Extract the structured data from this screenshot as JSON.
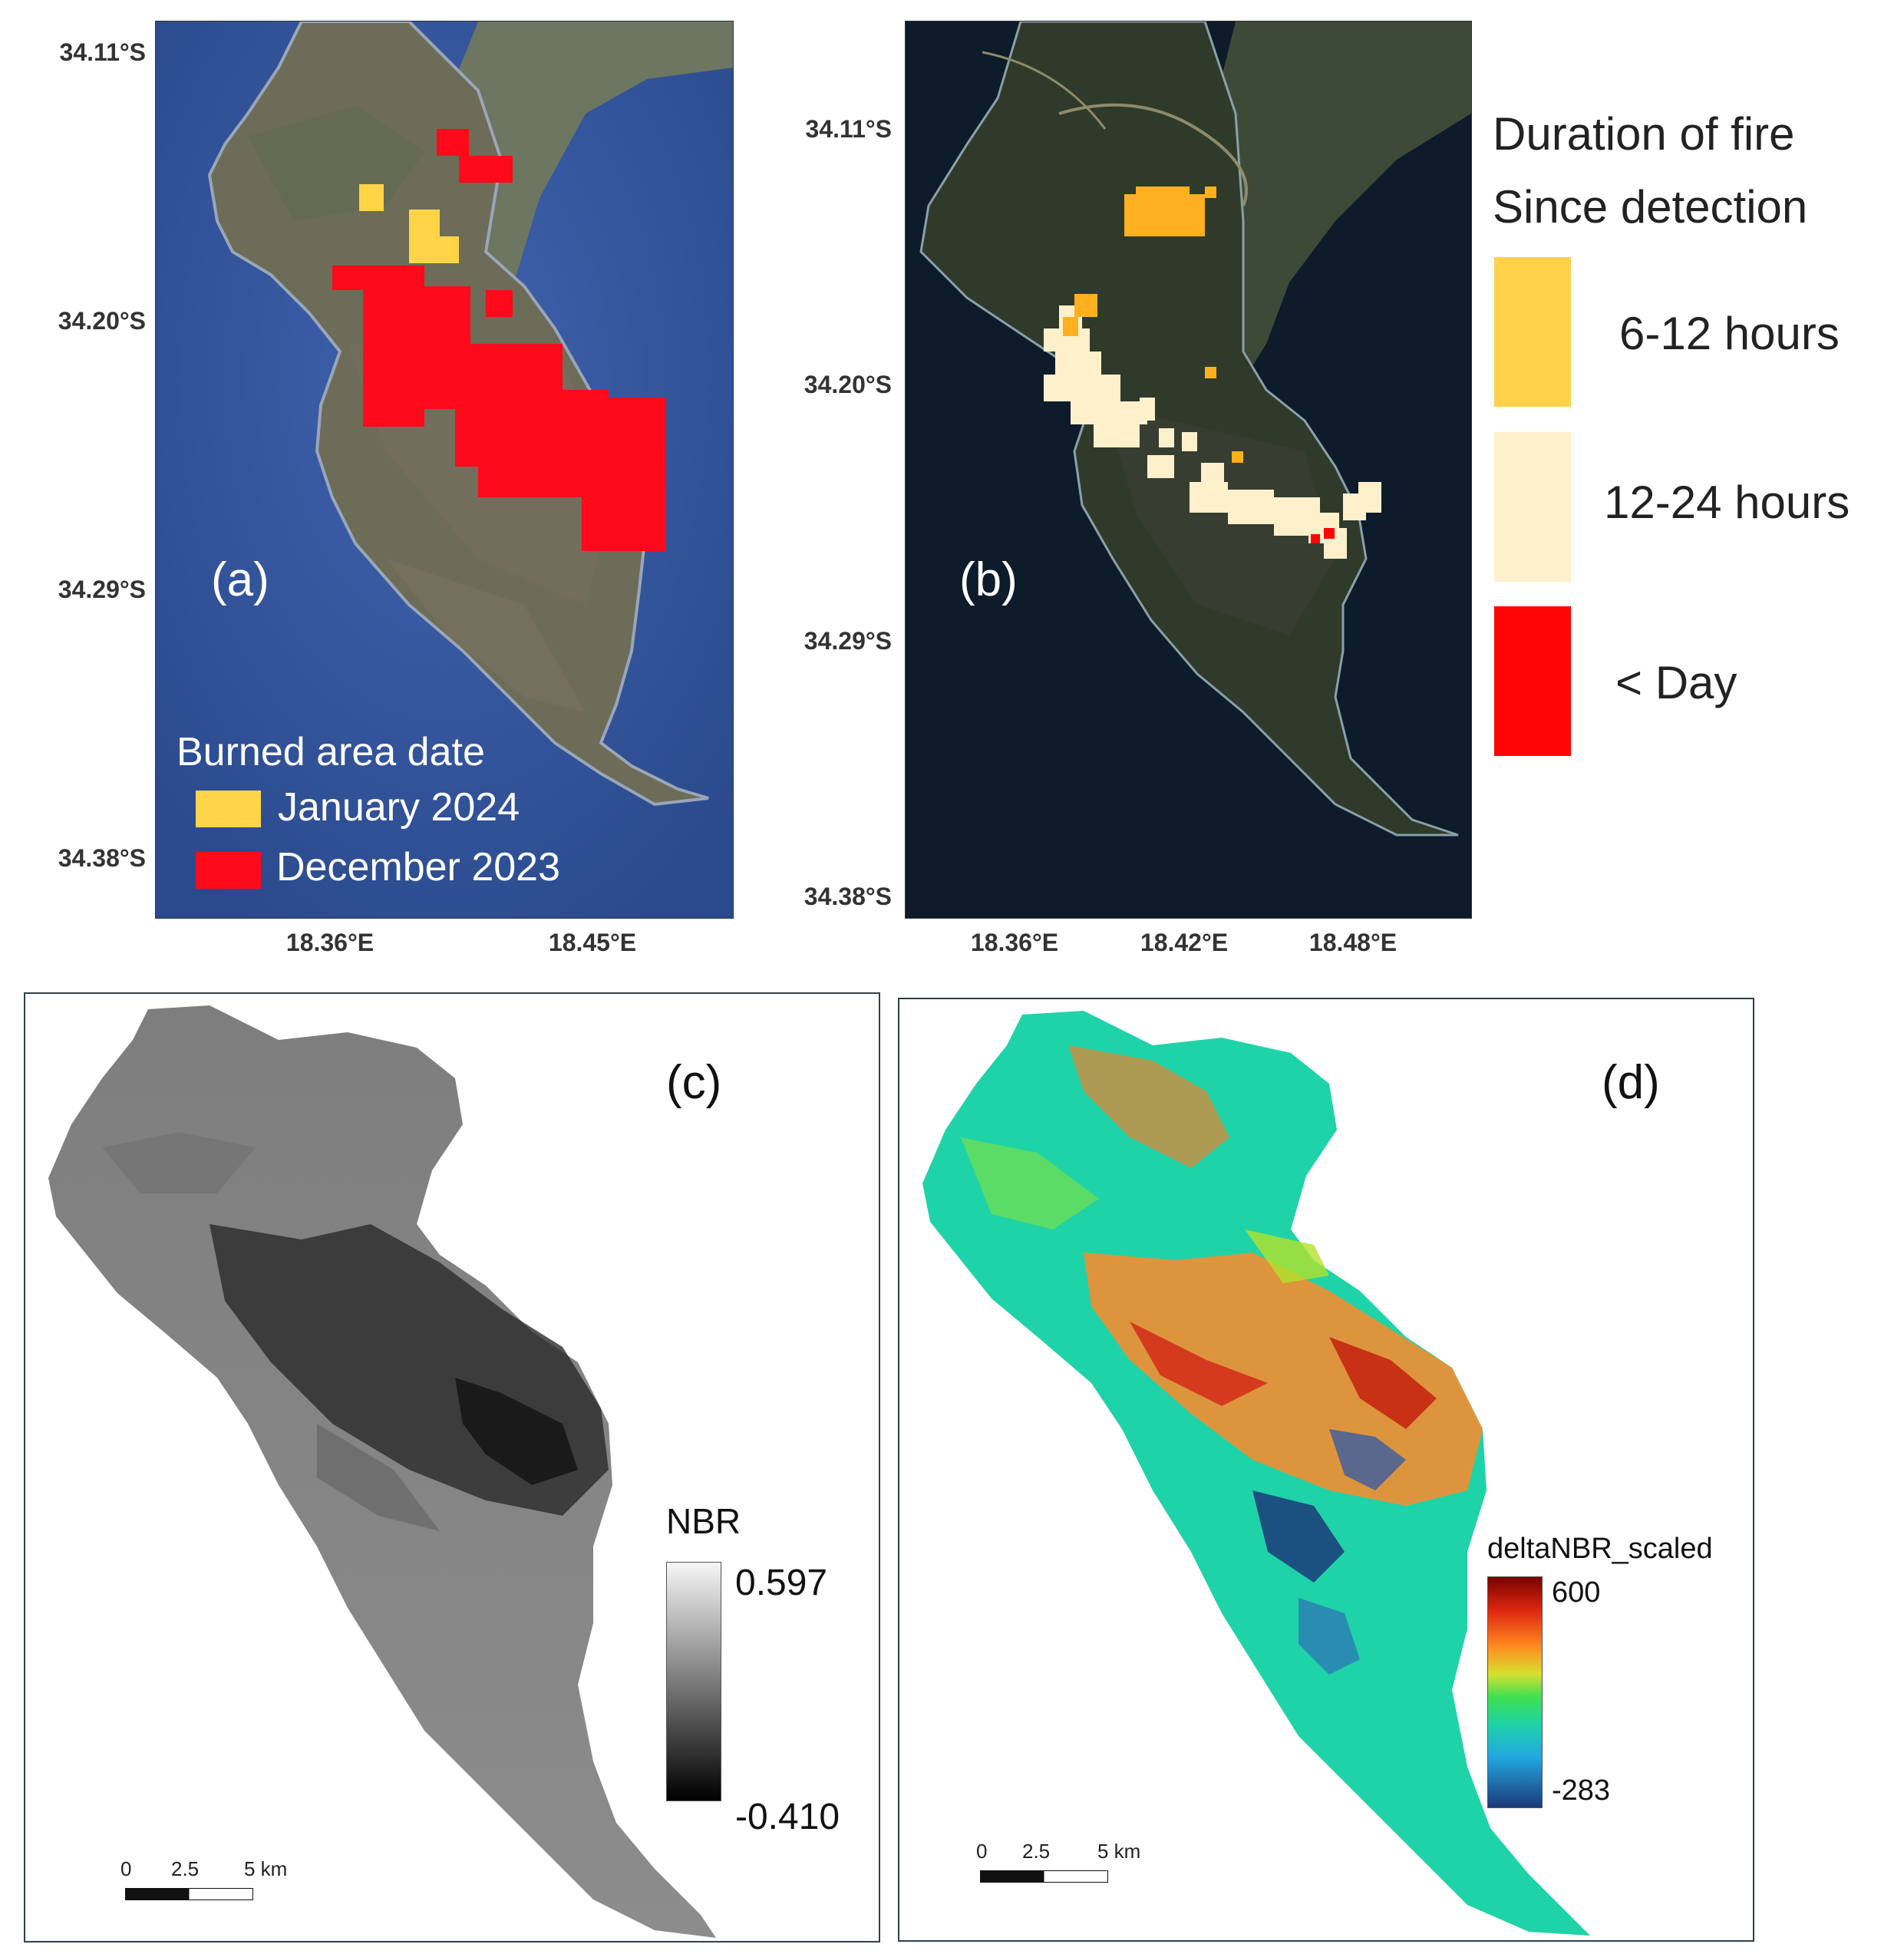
{
  "panel_a": {
    "label": "(a)",
    "lat_ticks": [
      "34.11°S",
      "34.20°S",
      "34.29°S",
      "34.38°S"
    ],
    "lon_ticks": [
      "18.36°E",
      "18.45°E"
    ],
    "legend_title": "Burned area date",
    "legend_items": [
      {
        "label": "January 2024",
        "color": "#ffd447"
      },
      {
        "label": "December 2023",
        "color": "#ff0a1a"
      }
    ]
  },
  "panel_b": {
    "label": "(b)",
    "lat_ticks": [
      "34.11°S",
      "34.20°S",
      "34.29°S",
      "34.38°S"
    ],
    "lon_ticks": [
      "18.36°E",
      "18.42°E",
      "18.48°E"
    ],
    "legend_title_line1": "Duration of fire",
    "legend_title_line2": "Since detection",
    "legend_items": [
      {
        "label": "6-12 hours",
        "color": "#ffd04a"
      },
      {
        "label": "12-24 hours",
        "color": "#fff0cc"
      },
      {
        "label": "< Day",
        "color": "#ff0505"
      }
    ]
  },
  "panel_c": {
    "label": "(c)",
    "colorbar_title": "NBR",
    "colorbar_max": "0.597",
    "colorbar_min": "-0.410",
    "scale_labels": [
      "0",
      "2.5",
      "5 km"
    ]
  },
  "panel_d": {
    "label": "(d)",
    "colorbar_title": "deltaNBR_scaled",
    "colorbar_max": "600",
    "colorbar_min": "-283",
    "scale_labels": [
      "0",
      "2.5",
      "5 km"
    ]
  }
}
